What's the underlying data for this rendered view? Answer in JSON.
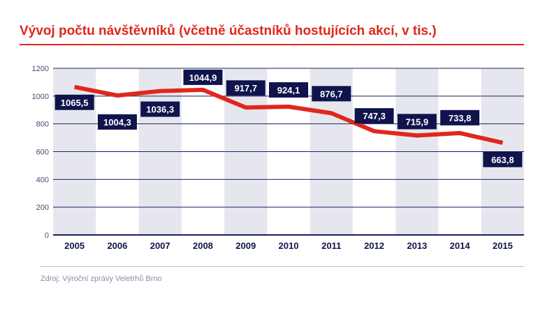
{
  "title": "Vývoj počtu návštěvníků (včetně účastníků hostujících akcí, v tis.)",
  "source": "Zdroj: Výroční zprávy Veletrhů Brno",
  "colors": {
    "accent": "#e1261c",
    "navy": "#10144c",
    "band": "#e6e7ee",
    "grid": "#1a1f5e"
  },
  "chart_data": {
    "type": "line",
    "title": "Vývoj počtu návštěvníků (včetně účastníků hostujících akcí, v tis.)",
    "xlabel": "",
    "ylabel": "",
    "ylim": [
      0,
      1200
    ],
    "yticks": [
      0,
      200,
      400,
      600,
      800,
      1000,
      1200
    ],
    "ytick_labels": [
      "0",
      "200",
      "400",
      "600",
      "800",
      "1000",
      "1200"
    ],
    "grid": true,
    "legend": "none",
    "categories": [
      "2005",
      "2006",
      "2007",
      "2008",
      "2009",
      "2010",
      "2011",
      "2012",
      "2013",
      "2014",
      "2015"
    ],
    "series": [
      {
        "name": "Návštěvníci (tis.)",
        "values": [
          1065.5,
          1004.3,
          1036.3,
          1044.9,
          917.7,
          924.1,
          876.7,
          747.3,
          715.9,
          733.8,
          663.8
        ],
        "labels": [
          "1065,5",
          "1004,3",
          "1036,3",
          "1044,9",
          "917,7",
          "924,1",
          "876,7",
          "747,3",
          "715,9",
          "733,8",
          "663,8"
        ]
      }
    ]
  }
}
